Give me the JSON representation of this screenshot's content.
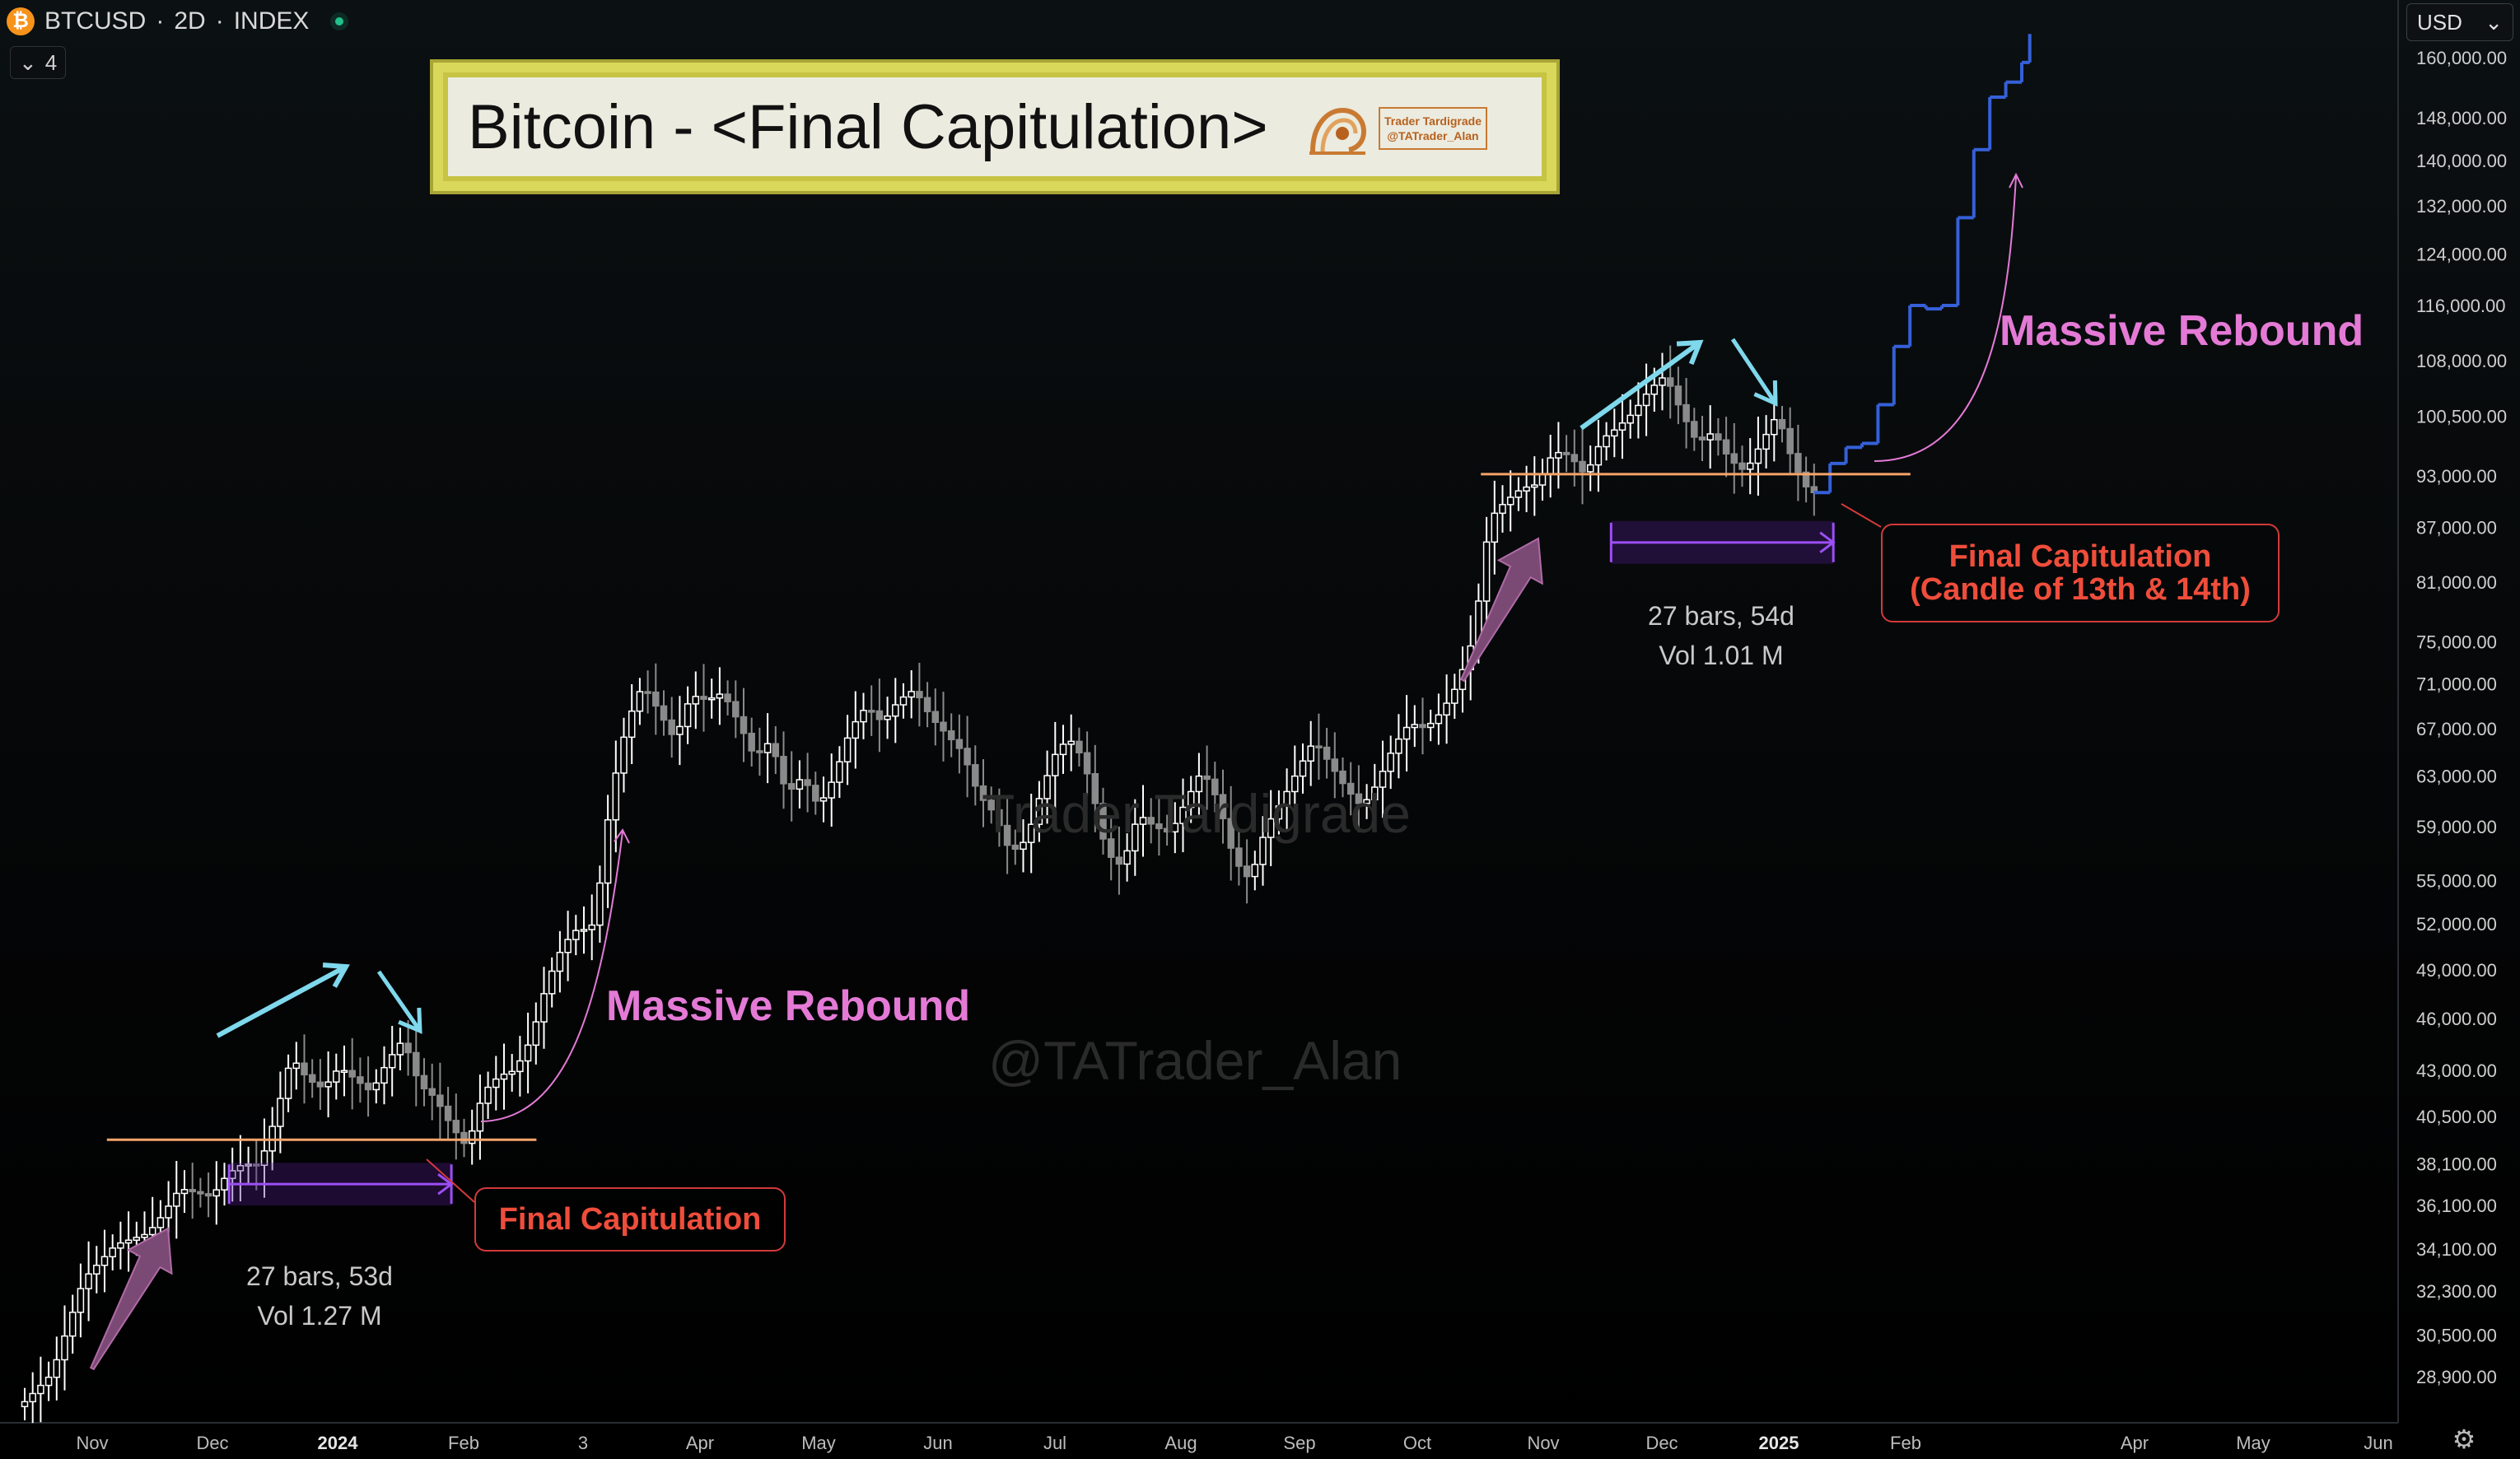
{
  "header": {
    "symbol": "BTCUSD",
    "separator1": "·",
    "interval": "2D",
    "separator2": "·",
    "exchange": "INDEX",
    "logo_glyph": "₿",
    "collapse_count": "4",
    "collapse_icon": "chevron-down-icon"
  },
  "currency": {
    "value": "USD",
    "icon": "chevron-down-icon"
  },
  "title": {
    "text": "Bitcoin - <Final Capitulation>",
    "badge_line1": "Trader Tardigrade",
    "badge_line2": "@TATrader_Alan"
  },
  "watermarks": {
    "top": "Trader Tardigrade",
    "bottom": "@TATrader_Alan"
  },
  "annotations": {
    "rebound_1": "Massive Rebound",
    "rebound_2": "Massive Rebound",
    "capitulation_1": "Final Capitulation",
    "capitulation_2_line1": "Final Capitulation",
    "capitulation_2_line2": "(Candle of 13th & 14th)",
    "range_1_bars": "27 bars, 53d",
    "range_1_vol": "Vol 1.27 M",
    "range_2_bars": "27 bars, 54d",
    "range_2_vol": "Vol 1.01 M"
  },
  "colors": {
    "support_line": "#f5a46a",
    "range_box": "#9d4ef5",
    "rebound_text": "#e47ad6",
    "capitulation": "#ef4d3b",
    "trend_arrow": "#7fd8ec",
    "push_arrow": "#9a5d8f",
    "projection": "#3560d8",
    "bull_candle": "#ffffff",
    "bear_candle": "#8a8a8a"
  },
  "chart_data": {
    "type": "candlestick",
    "symbol": "BTCUSD",
    "interval": "2D",
    "y_scale": "log",
    "ylim": [
      27500,
      168000
    ],
    "x_ticks": [
      "Nov",
      "Dec",
      "2024",
      "Feb",
      "3",
      "Apr",
      "May",
      "Jun",
      "Jul",
      "Aug",
      "Sep",
      "Oct",
      "Nov",
      "Dec",
      "2025",
      "Feb",
      "Apr",
      "May",
      "Jun"
    ],
    "y_ticks": [
      28900,
      30500,
      32300,
      34100,
      36100,
      38100,
      40500,
      43000,
      46000,
      49000,
      52000,
      55000,
      59000,
      63000,
      67000,
      71000,
      75000,
      81000,
      87000,
      93000,
      100500,
      108000,
      116000,
      124000,
      132000,
      140000,
      148000,
      160000
    ],
    "y_tick_labels": [
      "28,900.00",
      "30,500.00",
      "32,300.00",
      "34,100.00",
      "36,100.00",
      "38,100.00",
      "40,500.00",
      "43,000.00",
      "46,000.00",
      "49,000.00",
      "52,000.00",
      "55,000.00",
      "59,000.00",
      "63,000.00",
      "67,000.00",
      "71,000.00",
      "75,000.00",
      "81,000.00",
      "87,000.00",
      "93,000.00",
      "100,500.00",
      "108,000.00",
      "116,000.00",
      "124,000.00",
      "132,000.00",
      "140,000.00",
      "148,000.00",
      "160,000.00"
    ],
    "price_path": [
      [
        0,
        27800
      ],
      [
        4,
        29000
      ],
      [
        8,
        32800
      ],
      [
        12,
        34300
      ],
      [
        16,
        34800
      ],
      [
        18,
        35700
      ],
      [
        20,
        36900
      ],
      [
        24,
        36500
      ],
      [
        26,
        37600
      ],
      [
        28,
        38100
      ],
      [
        30,
        38000
      ],
      [
        32,
        40500
      ],
      [
        34,
        43800
      ],
      [
        36,
        42500
      ],
      [
        38,
        42000
      ],
      [
        40,
        43200
      ],
      [
        42,
        42500
      ],
      [
        44,
        41800
      ],
      [
        46,
        43500
      ],
      [
        48,
        44800
      ],
      [
        50,
        42200
      ],
      [
        52,
        41500
      ],
      [
        54,
        40000
      ],
      [
        56,
        38900
      ],
      [
        58,
        41800
      ],
      [
        60,
        42700
      ],
      [
        62,
        43000
      ],
      [
        64,
        44800
      ],
      [
        66,
        48200
      ],
      [
        68,
        50600
      ],
      [
        70,
        51800
      ],
      [
        71,
        51500
      ],
      [
        72,
        52200
      ],
      [
        74,
        61500
      ],
      [
        76,
        67500
      ],
      [
        78,
        71000
      ],
      [
        80,
        68500
      ],
      [
        82,
        66000
      ],
      [
        84,
        70000
      ],
      [
        86,
        69500
      ],
      [
        88,
        70200
      ],
      [
        90,
        67500
      ],
      [
        92,
        64500
      ],
      [
        94,
        66000
      ],
      [
        96,
        61500
      ],
      [
        98,
        63000
      ],
      [
        100,
        60500
      ],
      [
        102,
        63000
      ],
      [
        104,
        67000
      ],
      [
        106,
        69000
      ],
      [
        108,
        67500
      ],
      [
        110,
        69500
      ],
      [
        112,
        70500
      ],
      [
        114,
        68000
      ],
      [
        116,
        66500
      ],
      [
        118,
        65000
      ],
      [
        120,
        61500
      ],
      [
        122,
        60000
      ],
      [
        124,
        57000
      ],
      [
        126,
        58000
      ],
      [
        128,
        62000
      ],
      [
        130,
        65500
      ],
      [
        132,
        66000
      ],
      [
        134,
        62500
      ],
      [
        136,
        57000
      ],
      [
        138,
        56000
      ],
      [
        140,
        60000
      ],
      [
        142,
        59000
      ],
      [
        144,
        58500
      ],
      [
        146,
        61000
      ],
      [
        148,
        63500
      ],
      [
        150,
        61000
      ],
      [
        152,
        56500
      ],
      [
        154,
        55000
      ],
      [
        156,
        59000
      ],
      [
        158,
        61000
      ],
      [
        160,
        63500
      ],
      [
        162,
        66000
      ],
      [
        164,
        64000
      ],
      [
        166,
        62000
      ],
      [
        168,
        60500
      ],
      [
        170,
        62500
      ],
      [
        172,
        65500
      ],
      [
        174,
        67500
      ],
      [
        176,
        67000
      ],
      [
        178,
        68500
      ],
      [
        180,
        71000
      ],
      [
        182,
        75500
      ],
      [
        184,
        88000
      ],
      [
        186,
        90000
      ],
      [
        188,
        91500
      ],
      [
        190,
        92000
      ],
      [
        192,
        96000
      ],
      [
        194,
        95500
      ],
      [
        196,
        93000
      ],
      [
        198,
        97500
      ],
      [
        200,
        99000
      ],
      [
        202,
        101000
      ],
      [
        204,
        104000
      ],
      [
        206,
        106000
      ],
      [
        208,
        101000
      ],
      [
        210,
        97000
      ],
      [
        212,
        98500
      ],
      [
        214,
        95000
      ],
      [
        216,
        93500
      ],
      [
        218,
        97000
      ],
      [
        220,
        100800
      ],
      [
        222,
        94500
      ],
      [
        224,
        91000
      ]
    ],
    "projection_path": [
      [
        224,
        91000
      ],
      [
        226,
        94500
      ],
      [
        228,
        96500
      ],
      [
        230,
        97000
      ],
      [
        232,
        102000
      ],
      [
        234,
        110000
      ],
      [
        236,
        116000
      ],
      [
        238,
        115500
      ],
      [
        240,
        116000
      ],
      [
        242,
        130000
      ],
      [
        244,
        142000
      ],
      [
        246,
        152000
      ],
      [
        248,
        155000
      ],
      [
        250,
        159000
      ],
      [
        251,
        165000
      ]
    ],
    "support_levels": [
      {
        "price": 39300,
        "from": 14,
        "to": 62
      },
      {
        "price": 93200,
        "from": 186,
        "to": 234
      }
    ],
    "capitulation_ranges": [
      {
        "from": 26,
        "to": 53,
        "bars": 27,
        "days": 53,
        "volume": "1.27 M"
      },
      {
        "from": 199,
        "to": 226,
        "bars": 27,
        "days": 54,
        "volume": "1.01 M"
      }
    ]
  }
}
